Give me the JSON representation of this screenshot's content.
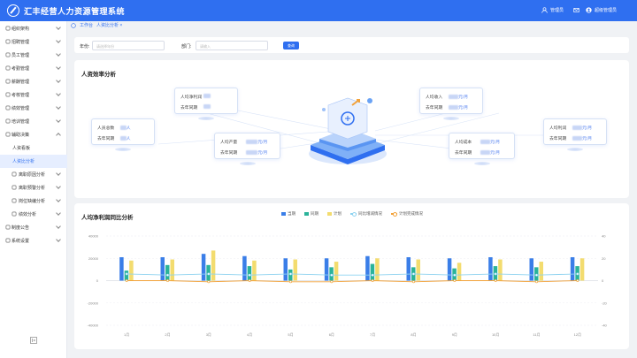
{
  "app": {
    "title": "汇丰经营人力资源管理系统"
  },
  "topbar": {
    "manage_label": "管理员",
    "user_label": "超级管理员"
  },
  "sidebar": {
    "items": [
      {
        "label": "组织架构"
      },
      {
        "label": "招聘管理"
      },
      {
        "label": "员工管理"
      },
      {
        "label": "考勤管理"
      },
      {
        "label": "薪酬管理"
      },
      {
        "label": "考核管理"
      },
      {
        "label": "绩效管理"
      },
      {
        "label": "培训管理"
      },
      {
        "label": "辅助决策"
      },
      {
        "label": "人资看板"
      },
      {
        "label": "人资比分析"
      },
      {
        "label": "离职原因分析"
      },
      {
        "label": "离职预警分析"
      },
      {
        "label": "岗位缺编分析"
      },
      {
        "label": "绩效分析"
      },
      {
        "label": "制度公告"
      },
      {
        "label": "系统设置"
      }
    ]
  },
  "breadcrumb": {
    "home": "工作台",
    "current": "人资比分析"
  },
  "filter": {
    "year_label": "年份:",
    "year_placeholder": "请选择年份",
    "dept_label": "部门:",
    "dept_placeholder": "请输入",
    "query_button": "查询"
  },
  "efficiency": {
    "title": "人资效率分析",
    "cards": [
      {
        "key": "headcount",
        "label": "人员总数",
        "value": "298",
        "unit": "人",
        "prev_label": "去年同期",
        "prev": "261",
        "prev_unit": "人"
      },
      {
        "key": "profit_margin",
        "label": "人均净利润",
        "value": "86%",
        "unit": "",
        "prev_label": "去年同期",
        "prev": "62%",
        "prev_unit": ""
      },
      {
        "key": "output",
        "label": "人均产量",
        "value": "326584",
        "unit": "元/月",
        "prev_label": "去年同期",
        "prev": "285693",
        "prev_unit": "元/月"
      },
      {
        "key": "income",
        "label": "人均收入",
        "value": "56587",
        "unit": "元/月",
        "prev_label": "去年同期",
        "prev": "45621",
        "prev_unit": "元/月"
      },
      {
        "key": "cost",
        "label": "人均成本",
        "value": "35168",
        "unit": "元/月",
        "prev_label": "去年同期",
        "prev": "30627",
        "prev_unit": "元/月"
      },
      {
        "key": "profit",
        "label": "人均利润",
        "value": "21568",
        "unit": "元/月",
        "prev_label": "去年同期",
        "prev": "18564",
        "prev_unit": "元/月"
      }
    ]
  },
  "colors": {
    "primary": "#2f6ff0",
    "current": "#3a7ee8",
    "yoy": "#2bb39a",
    "plan": "#f3dc6f",
    "yoy_rate": "#8fd3f0",
    "plan_rate": "#f2a23a"
  },
  "chart_data": {
    "type": "bar",
    "title": "人均净利润同比分析",
    "categories": [
      "1月",
      "2月",
      "3月",
      "4月",
      "5月",
      "6月",
      "7月",
      "8月",
      "9月",
      "10月",
      "11月",
      "12月"
    ],
    "ylim": [
      -40000,
      40000
    ],
    "y2lim": [
      -40000,
      40000
    ],
    "yticks": [
      40000,
      20000,
      0,
      -20000,
      -40000
    ],
    "y2ticks": [
      40,
      20,
      0,
      -20,
      -40
    ],
    "series": [
      {
        "name": "当期",
        "type": "bar",
        "values": [
          21000,
          21000,
          24000,
          22000,
          20000,
          20000,
          22000,
          21000,
          20000,
          21000,
          20000,
          21000
        ]
      },
      {
        "name": "同期",
        "type": "bar",
        "values": [
          9000,
          14000,
          14000,
          13000,
          10000,
          12000,
          15000,
          12000,
          11000,
          13000,
          12000,
          13000
        ]
      },
      {
        "name": "计划",
        "type": "bar",
        "values": [
          18000,
          19000,
          27000,
          18000,
          19000,
          17000,
          20000,
          19000,
          16000,
          19000,
          17000,
          20000
        ]
      },
      {
        "name": "同比增减情况",
        "type": "line",
        "values": [
          6,
          5,
          6,
          5,
          6,
          5,
          5,
          6,
          5,
          6,
          5,
          6
        ]
      },
      {
        "name": "计划完成情况",
        "type": "line",
        "values": [
          0,
          0,
          -1,
          0,
          -1,
          -1,
          0,
          -1,
          0,
          0,
          -1,
          0
        ]
      }
    ]
  }
}
